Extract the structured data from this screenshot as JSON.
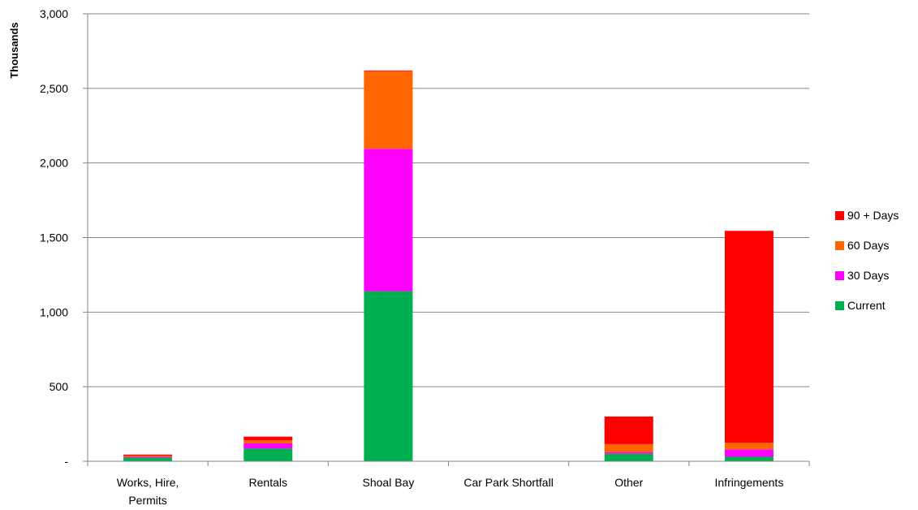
{
  "chart_data": {
    "type": "bar",
    "stacked": true,
    "title": "",
    "xlabel": "",
    "ylabel": "Thousands",
    "ylim": [
      0,
      3000
    ],
    "y_ticks": [
      0,
      500,
      1000,
      1500,
      2000,
      2500,
      3000
    ],
    "y_tick_labels": [
      "-",
      "500",
      "1,000",
      "1,500",
      "2,000",
      "2,500",
      "3,000"
    ],
    "grid": true,
    "legend_position": "right",
    "categories": [
      [
        "Works, Hire,",
        "Permits"
      ],
      [
        "Rentals"
      ],
      [
        "Shoal Bay"
      ],
      [
        "Car Park Shortfall"
      ],
      [
        "Other"
      ],
      [
        "Infringements"
      ]
    ],
    "series": [
      {
        "name": "Current",
        "color": "#00b050",
        "values": [
          25,
          85,
          1140,
          0,
          50,
          30
        ]
      },
      {
        "name": "30 Days",
        "color": "#ff00ff",
        "values": [
          5,
          35,
          955,
          0,
          10,
          50
        ]
      },
      {
        "name": "60 Days",
        "color": "#ff6600",
        "values": [
          8,
          20,
          520,
          0,
          55,
          45
        ]
      },
      {
        "name": "90 + Days",
        "color": "#ff0000",
        "values": [
          7,
          25,
          5,
          0,
          185,
          1420
        ]
      }
    ]
  }
}
